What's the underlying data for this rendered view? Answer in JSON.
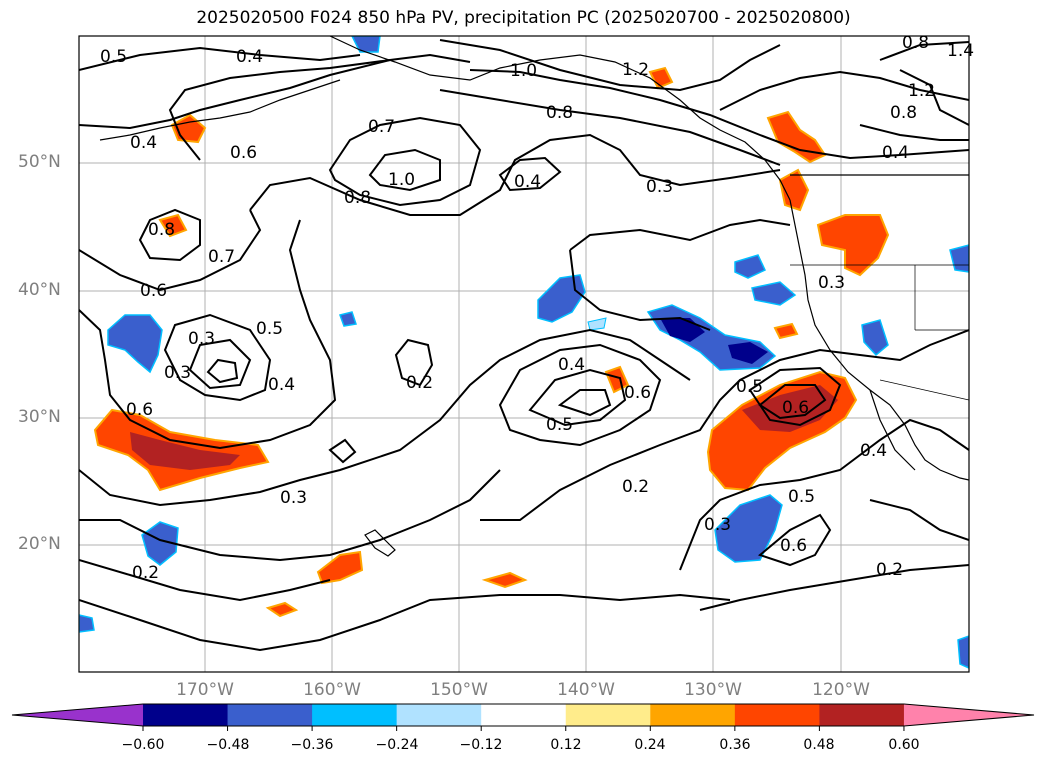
{
  "title": "2025020500 F024 850 hPa PV, precipitation PC (2025020700 - 2025020800)",
  "lat_labels": [
    "50°N",
    "40°N",
    "30°N",
    "20°N"
  ],
  "lon_labels": [
    "170°W",
    "160°W",
    "150°W",
    "140°W",
    "130°W",
    "120°W"
  ],
  "colorbar": {
    "ticks": [
      "−0.60",
      "−0.48",
      "−0.36",
      "−0.24",
      "−0.12",
      "0.12",
      "0.24",
      "0.36",
      "0.48",
      "0.60"
    ],
    "colors": [
      "#9932cc",
      "#00008b",
      "#3a5fcd",
      "#00bfff",
      "#b0e2ff",
      "#ffffff",
      "#ffec8b",
      "#ffa500",
      "#ff4500",
      "#b22222",
      "#ff82ab"
    ]
  },
  "contour_labels": [
    "0.5",
    "0.4",
    "1.0",
    "1.2",
    "0.8",
    "1.4",
    "0.6",
    "0.7",
    "1.0",
    "0.8",
    "0.4",
    "0.3",
    "0.4",
    "0.8",
    "0.7",
    "0.6",
    "0.3",
    "0.5",
    "0.4",
    "0.3",
    "0.2",
    "0.4",
    "0.6",
    "0.5",
    "0.5",
    "0.6",
    "0.4",
    "0.2",
    "0.3",
    "0.5",
    "0.6",
    "0.2",
    "0.6",
    "0.3",
    "0.2",
    "0.8",
    "1.2",
    "0.8",
    "0.4",
    "0.3"
  ]
}
